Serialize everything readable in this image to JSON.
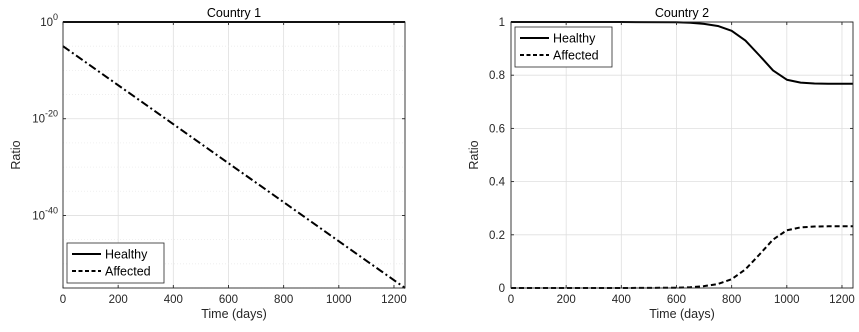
{
  "chart_data": [
    {
      "type": "line",
      "title": "Country 1",
      "xlabel": "Time (days)",
      "ylabel": "Ratio",
      "xlim": [
        0,
        1240
      ],
      "ylim_log10": [
        -55,
        0
      ],
      "yscale": "log",
      "x_ticks": [
        "0",
        "200",
        "400",
        "600",
        "800",
        "1000",
        "1200"
      ],
      "y_ticks": [
        {
          "base": "10",
          "exp": "0"
        },
        {
          "base": "10",
          "exp": "-20"
        },
        {
          "base": "10",
          "exp": "-40"
        }
      ],
      "grid": true,
      "legend": "bottom-left",
      "series": [
        {
          "name": "Healthy",
          "style": "solid",
          "color": "#000000",
          "x": [
            0,
            1240
          ],
          "y_log10": [
            0,
            0
          ]
        },
        {
          "name": "Affected",
          "style": "dash-dot",
          "color": "#000000",
          "x": [
            0,
            1240
          ],
          "y_log10": [
            -5,
            -55
          ]
        }
      ]
    },
    {
      "type": "line",
      "title": "Country 2",
      "xlabel": "Time (days)",
      "ylabel": "Ratio",
      "xlim": [
        0,
        1240
      ],
      "ylim": [
        0,
        1
      ],
      "x_ticks": [
        "0",
        "200",
        "400",
        "600",
        "800",
        "1000",
        "1200"
      ],
      "y_ticks": [
        "0",
        "0.2",
        "0.4",
        "0.6",
        "0.8",
        "1"
      ],
      "grid": true,
      "legend": "top-left",
      "series": [
        {
          "name": "Healthy",
          "style": "solid",
          "color": "#000000",
          "x": [
            0,
            200,
            400,
            600,
            650,
            700,
            750,
            800,
            850,
            900,
            950,
            1000,
            1050,
            1100,
            1150,
            1200,
            1240
          ],
          "y": [
            1.0,
            1.0,
            1.0,
            0.999,
            0.997,
            0.993,
            0.985,
            0.967,
            0.93,
            0.875,
            0.818,
            0.783,
            0.772,
            0.769,
            0.768,
            0.768,
            0.768
          ]
        },
        {
          "name": "Affected",
          "style": "dashed",
          "color": "#000000",
          "x": [
            0,
            200,
            400,
            600,
            650,
            700,
            750,
            800,
            850,
            900,
            950,
            1000,
            1050,
            1100,
            1150,
            1200,
            1240
          ],
          "y": [
            0.0,
            0.0,
            0.0,
            0.001,
            0.003,
            0.007,
            0.015,
            0.033,
            0.07,
            0.125,
            0.182,
            0.217,
            0.228,
            0.231,
            0.232,
            0.232,
            0.232
          ]
        }
      ]
    }
  ]
}
